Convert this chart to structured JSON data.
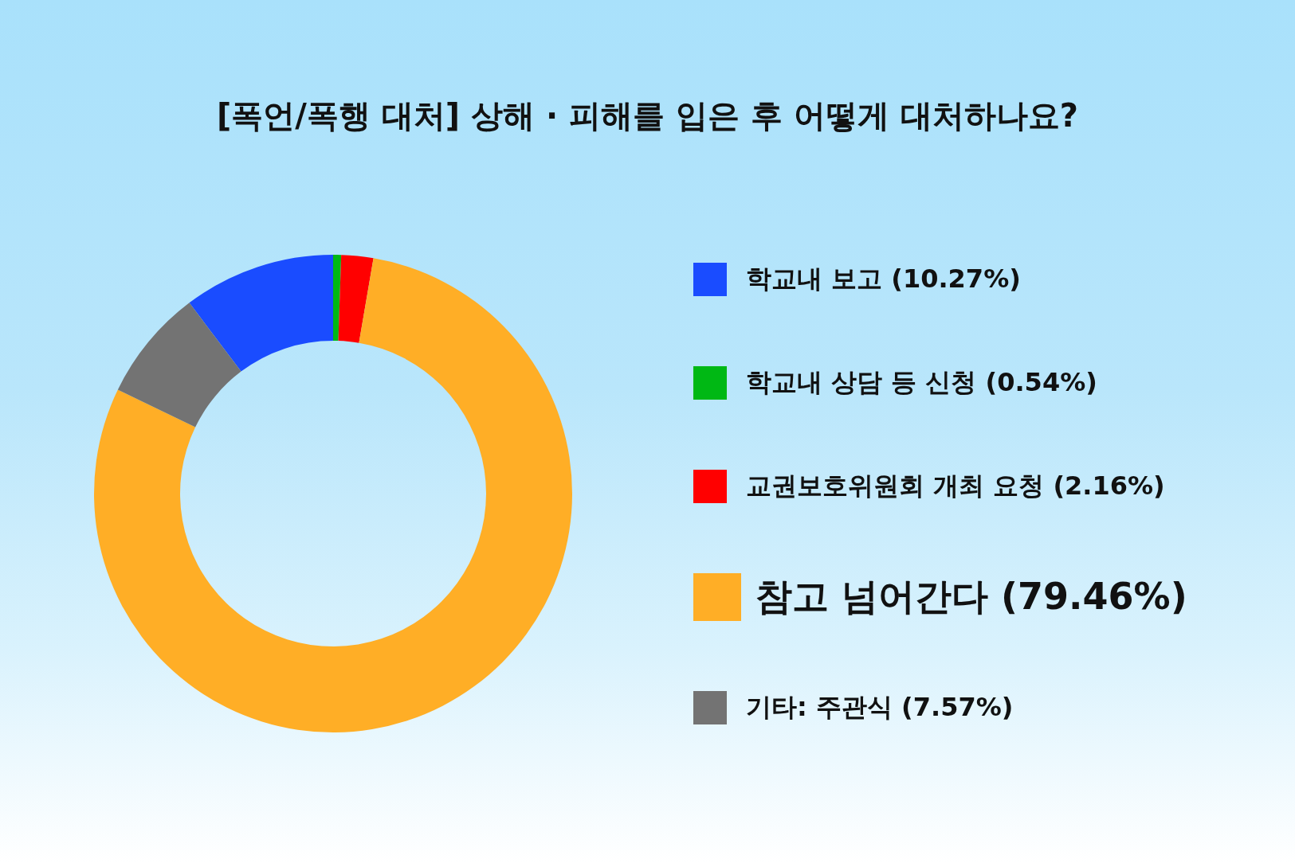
{
  "chart_data": {
    "type": "donut",
    "title": "[폭언/폭행 대처] 상해 · 피해를 입은 후 어떻게 대처하나요?",
    "categories": [
      "학교내 보고 (10.27%)",
      "학교내 상담 등 신청 (0.54%)",
      "교권보호위원회 개최 요청 (2.16%)",
      "참고 넘어간다 (79.46%)",
      "기타: 주관식 (7.57%)"
    ],
    "values": [
      10.27,
      0.54,
      2.16,
      79.46,
      7.57
    ],
    "colors": [
      "#1a4cff",
      "#00b814",
      "#ff0000",
      "#ffae26",
      "#737373"
    ],
    "legend": "right"
  }
}
